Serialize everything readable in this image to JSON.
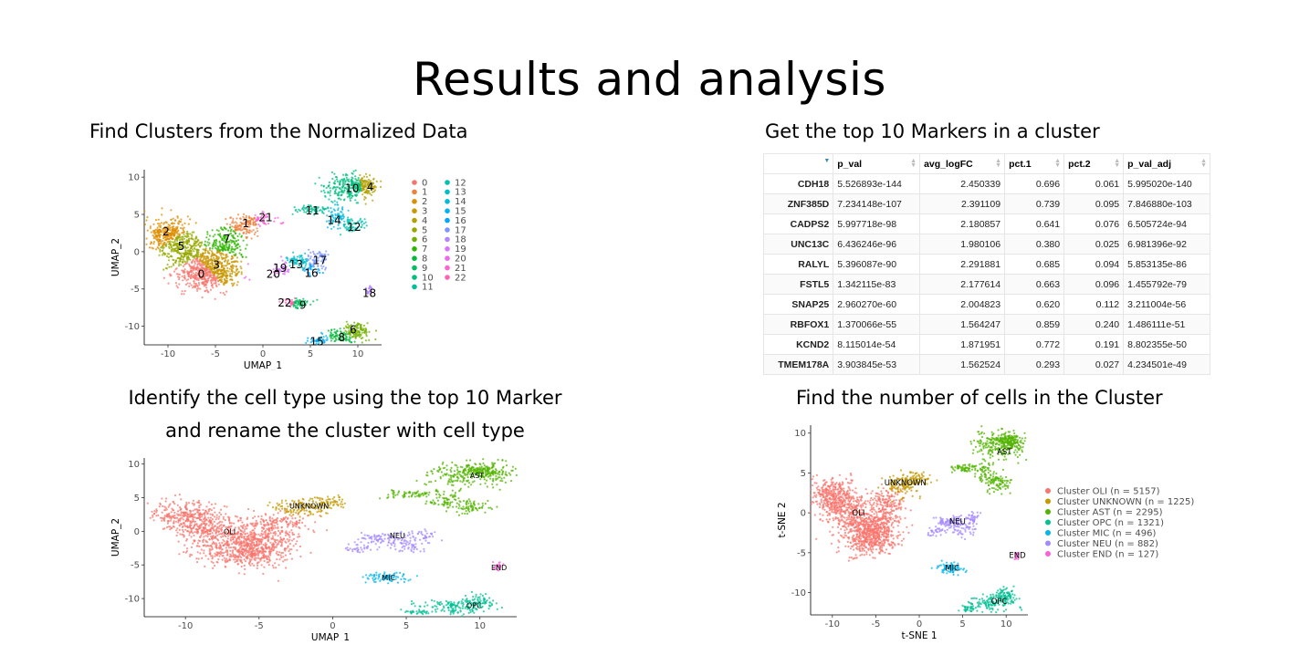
{
  "slide": {
    "title": "Results and analysis",
    "captions": {
      "top_left": "Find Clusters from the Normalized Data",
      "top_right": "Get the top 10 Markers in a cluster",
      "bottom_left_line1": "Identify the cell type using the top 10 Marker",
      "bottom_left_line2": "and rename the cluster with cell type",
      "bottom_right": "Find the number of cells in the Cluster"
    }
  },
  "markers_table": {
    "columns": [
      "p_val",
      "avg_logFC",
      "pct.1",
      "pct.2",
      "p_val_adj"
    ],
    "rows": [
      {
        "gene": "CDH18",
        "p_val": "5.526893e-144",
        "avg_logFC": "2.450339",
        "pct1": "0.696",
        "pct2": "0.061",
        "p_val_adj": "5.995020e-140"
      },
      {
        "gene": "ZNF385D",
        "p_val": "7.234148e-107",
        "avg_logFC": "2.391109",
        "pct1": "0.739",
        "pct2": "0.095",
        "p_val_adj": "7.846880e-103"
      },
      {
        "gene": "CADPS2",
        "p_val": "5.997718e-98",
        "avg_logFC": "2.180857",
        "pct1": "0.641",
        "pct2": "0.076",
        "p_val_adj": "6.505724e-94"
      },
      {
        "gene": "UNC13C",
        "p_val": "6.436246e-96",
        "avg_logFC": "1.980106",
        "pct1": "0.380",
        "pct2": "0.025",
        "p_val_adj": "6.981396e-92"
      },
      {
        "gene": "RALYL",
        "p_val": "5.396087e-90",
        "avg_logFC": "2.291881",
        "pct1": "0.685",
        "pct2": "0.094",
        "p_val_adj": "5.853135e-86"
      },
      {
        "gene": "FSTL5",
        "p_val": "1.342115e-83",
        "avg_logFC": "2.177614",
        "pct1": "0.663",
        "pct2": "0.096",
        "p_val_adj": "1.455792e-79"
      },
      {
        "gene": "SNAP25",
        "p_val": "2.960270e-60",
        "avg_logFC": "2.004823",
        "pct1": "0.620",
        "pct2": "0.112",
        "p_val_adj": "3.211004e-56"
      },
      {
        "gene": "RBFOX1",
        "p_val": "1.370066e-55",
        "avg_logFC": "1.564247",
        "pct1": "0.859",
        "pct2": "0.240",
        "p_val_adj": "1.486111e-51"
      },
      {
        "gene": "KCND2",
        "p_val": "8.115014e-54",
        "avg_logFC": "1.871951",
        "pct1": "0.772",
        "pct2": "0.191",
        "p_val_adj": "8.802355e-50"
      },
      {
        "gene": "TMEM178A",
        "p_val": "3.903845e-53",
        "avg_logFC": "1.562524",
        "pct1": "0.293",
        "pct2": "0.027",
        "p_val_adj": "4.234501e-49"
      }
    ]
  },
  "chart_data": [
    {
      "type": "scatter",
      "xlabel": "UMAP_1",
      "ylabel": "UMAP_2",
      "x_ticks": [
        -10,
        -5,
        0,
        5,
        10
      ],
      "y_ticks": [
        -10,
        -5,
        0,
        5,
        10
      ],
      "xlim": [
        -12.5,
        12.5
      ],
      "ylim": [
        -12.5,
        11
      ],
      "legend_position": "right",
      "legend": [
        "0",
        "1",
        "2",
        "3",
        "4",
        "5",
        "6",
        "7",
        "8",
        "9",
        "10",
        "11",
        "12",
        "13",
        "14",
        "15",
        "16",
        "17",
        "18",
        "19",
        "20",
        "21",
        "22"
      ],
      "colors": [
        "#F8766D",
        "#EC823C",
        "#DD8D00",
        "#CA9700",
        "#B3A000",
        "#97A900",
        "#71B000",
        "#2FB600",
        "#00BA38",
        "#00BD5F",
        "#00BF7D",
        "#00C097",
        "#00C0B0",
        "#00BEC8",
        "#00BADE",
        "#00B2F3",
        "#00A6FF",
        "#7C96FF",
        "#B385FF",
        "#D874FD",
        "#EF67EB",
        "#FD61D3",
        "#FF63B6"
      ],
      "cluster_labels": [
        {
          "label": "0",
          "x": -6.5,
          "y": -3
        },
        {
          "label": "1",
          "x": -1.8,
          "y": 3.8
        },
        {
          "label": "2",
          "x": -10.2,
          "y": 2.7
        },
        {
          "label": "3",
          "x": -4.9,
          "y": -1.8
        },
        {
          "label": "4",
          "x": 11.3,
          "y": 8.7
        },
        {
          "label": "5",
          "x": -8.6,
          "y": 0.7
        },
        {
          "label": "6",
          "x": 9.5,
          "y": -10.5
        },
        {
          "label": "7",
          "x": -3.8,
          "y": 1.7
        },
        {
          "label": "8",
          "x": 8.3,
          "y": -11.5
        },
        {
          "label": "9",
          "x": 4.2,
          "y": -7.2
        },
        {
          "label": "10",
          "x": 9.4,
          "y": 8.5
        },
        {
          "label": "11",
          "x": 5.2,
          "y": 5.5
        },
        {
          "label": "12",
          "x": 9.6,
          "y": 3.3
        },
        {
          "label": "13",
          "x": 3.5,
          "y": -1.7
        },
        {
          "label": "14",
          "x": 7.5,
          "y": 4.2
        },
        {
          "label": "15",
          "x": 5.7,
          "y": -12.1
        },
        {
          "label": "16",
          "x": 5.1,
          "y": -2.9
        },
        {
          "label": "17",
          "x": 6,
          "y": -1.2
        },
        {
          "label": "18",
          "x": 11.2,
          "y": -5.6
        },
        {
          "label": "19",
          "x": 1.8,
          "y": -2.2
        },
        {
          "label": "20",
          "x": 1.1,
          "y": -3
        },
        {
          "label": "21",
          "x": 0.3,
          "y": 4.6
        },
        {
          "label": "22",
          "x": 2.3,
          "y": -6.9
        }
      ]
    },
    {
      "type": "scatter",
      "xlabel": "UMAP_1",
      "ylabel": "UMAP_2",
      "x_ticks": [
        -10,
        -5,
        0,
        5,
        10
      ],
      "y_ticks": [
        -10,
        -5,
        0,
        5,
        10
      ],
      "xlim": [
        -12.8,
        12.5
      ],
      "ylim": [
        -12.7,
        10.9
      ],
      "cluster_labels": [
        {
          "label": "OLI",
          "x": -7,
          "y": 0
        },
        {
          "label": "UNKNOWN",
          "x": -1.6,
          "y": 3.8
        },
        {
          "label": "AST",
          "x": 9.8,
          "y": 8.3
        },
        {
          "label": "NEU",
          "x": 4.4,
          "y": -0.6
        },
        {
          "label": "MIC",
          "x": 3.8,
          "y": -6.9
        },
        {
          "label": "OPC",
          "x": 9.6,
          "y": -11
        },
        {
          "label": "END",
          "x": 11.3,
          "y": -5.4
        }
      ],
      "colors": {
        "OLI": "#F8766D",
        "UNKNOWN": "#C49A00",
        "AST": "#53B400",
        "OPC": "#00C094",
        "MIC": "#00B6EB",
        "NEU": "#A58AFF",
        "END": "#FB61D7"
      }
    },
    {
      "type": "scatter",
      "xlabel": "t-SNE 1",
      "ylabel": "t-SNE 2",
      "x_ticks": [
        -10,
        -5,
        0,
        5,
        10
      ],
      "y_ticks": [
        -10,
        -5,
        0,
        5,
        10
      ],
      "xlim": [
        -12.5,
        12.5
      ],
      "ylim": [
        -12.8,
        11
      ],
      "legend_position": "right",
      "legend": [
        {
          "label": "Cluster OLI (n = 5157)",
          "color": "#F8766D"
        },
        {
          "label": "Cluster UNKNOWN (n = 1225)",
          "color": "#C49A00"
        },
        {
          "label": "Cluster AST (n = 2295)",
          "color": "#53B400"
        },
        {
          "label": "Cluster OPC (n = 1321)",
          "color": "#00C094"
        },
        {
          "label": "Cluster MIC (n = 496)",
          "color": "#00B6EB"
        },
        {
          "label": "Cluster NEU (n = 882)",
          "color": "#A58AFF"
        },
        {
          "label": "Cluster END (n = 127)",
          "color": "#FB61D7"
        }
      ],
      "cluster_labels": [
        {
          "label": "OLI",
          "x": -7,
          "y": 0
        },
        {
          "label": "UNKNOWN",
          "x": -1.6,
          "y": 3.8
        },
        {
          "label": "AST",
          "x": 9.8,
          "y": 7.7
        },
        {
          "label": "NEU",
          "x": 4.4,
          "y": -1.1
        },
        {
          "label": "MIC",
          "x": 3.8,
          "y": -6.9
        },
        {
          "label": "OPC",
          "x": 9.2,
          "y": -11.1
        },
        {
          "label": "END",
          "x": 11.3,
          "y": -5.3
        }
      ]
    }
  ]
}
